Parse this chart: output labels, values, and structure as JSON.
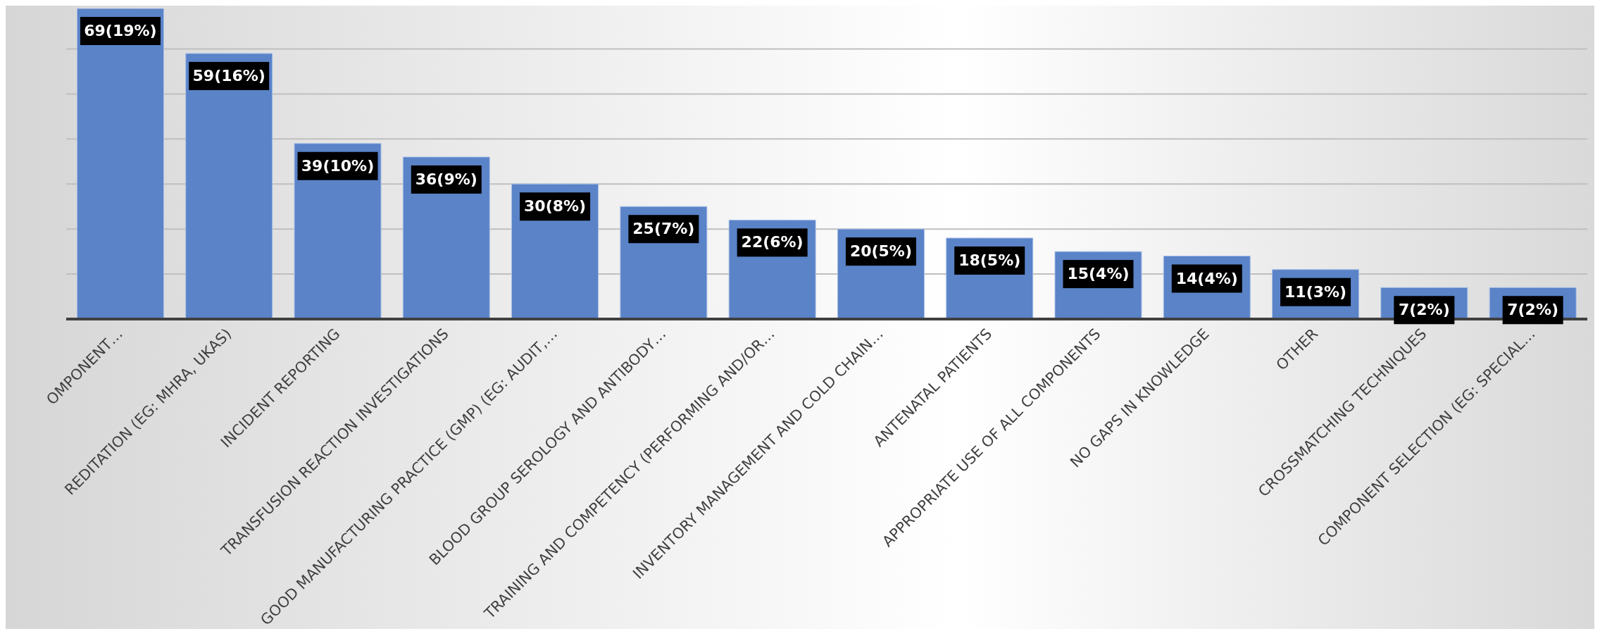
{
  "chart_data": {
    "type": "bar",
    "categories": [
      "OMPONENT…",
      "REDITATION (EG: MHRA, UKAS)",
      "INCIDENT REPORTING",
      "TRANSFUSION REACTION INVESTIGATIONS",
      "GOOD MANUFACTURING PRACTICE (GMP) (EG: AUDIT,…",
      "BLOOD GROUP SEROLOGY AND ANTIBODY…",
      "TRAINING AND COMPETENCY (PERFORMING AND/OR…",
      "INVENTORY MANAGEMENT AND COLD CHAIN…",
      "ANTENATAL PATIENTS",
      "APPROPRIATE USE OF ALL COMPONENTS",
      "NO GAPS IN KNOWLEDGE",
      "OTHER",
      "CROSSMATCHING TECHNIQUES",
      "COMPONENT SELECTION (EG: SPECIAL…"
    ],
    "values": [
      69,
      59,
      39,
      36,
      30,
      25,
      22,
      20,
      18,
      15,
      14,
      11,
      7,
      7
    ],
    "value_labels": [
      "69(19%)",
      "59(16%)",
      "39(10%)",
      "36(9%)",
      "30(8%)",
      "25(7%)",
      "22(6%)",
      "20(5%)",
      "18(5%)",
      "15(4%)",
      "14(4%)",
      "11(3%)",
      "7(2%)",
      "7(2%)"
    ],
    "color": "#5a83c8",
    "yticks": [
      {
        "value": 0,
        "label": null
      },
      {
        "value": 10,
        "label": null
      },
      {
        "value": 20,
        "label": null
      },
      {
        "value": 30,
        "label": null
      },
      {
        "value": 40,
        "label": null
      },
      {
        "value": 50,
        "label": null
      },
      {
        "value": 60,
        "label": null
      }
    ],
    "tick_labels": "x",
    "grid": "y",
    "legend": false
  }
}
